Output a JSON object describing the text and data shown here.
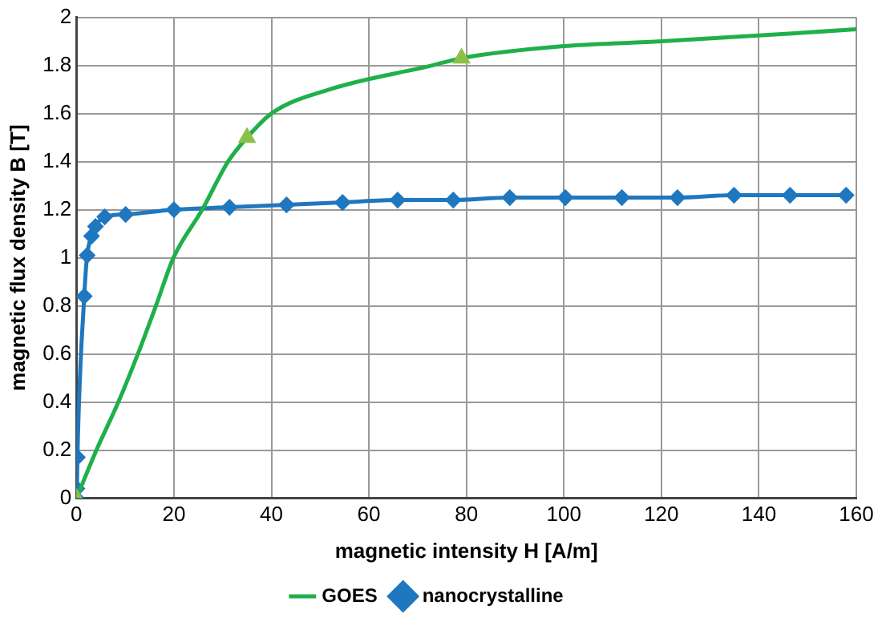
{
  "chart_data": {
    "type": "line",
    "xlabel": "magnetic intensity H [A/m]",
    "ylabel": "magnetic flux density B [T]",
    "xlim": [
      0,
      160
    ],
    "xticks": [
      0,
      20,
      40,
      60,
      80,
      100,
      120,
      140,
      160
    ],
    "ylim": [
      0,
      2
    ],
    "yticks": [
      0,
      0.2,
      0.4,
      0.6,
      0.8,
      1,
      1.2,
      1.4,
      1.6,
      1.8,
      2
    ],
    "grid": true,
    "legend": "bottom",
    "line_style": "solid",
    "series": [
      {
        "name": "GOES",
        "color": "#1fb04a",
        "marker": "none",
        "x": [
          0,
          4.1,
          8.6,
          12.6,
          16.3,
          19.9,
          25.8,
          31.1,
          35,
          40,
          51.9,
          73,
          79,
          100,
          120,
          160
        ],
        "values": [
          0,
          0.2,
          0.4,
          0.6,
          0.8,
          1,
          1.2,
          1.4,
          1.5,
          1.6,
          1.7,
          1.8,
          1.83,
          1.88,
          1.9,
          1.95
        ]
      },
      {
        "type": "scatter",
        "color": "#8cc04a",
        "marker": "triangle",
        "x": [
          0,
          35,
          79
        ],
        "values": [
          0,
          1.5,
          1.83
        ]
      },
      {
        "name": "nanocrystalline",
        "color": "#1f77c0",
        "marker": "diamond",
        "x": [
          0,
          0.1,
          0.2,
          1.6,
          2.2,
          3.1,
          3.9,
          5.8,
          10.1,
          20,
          31.4,
          43.1,
          54.6,
          65.9,
          77.3,
          88.9,
          100.3,
          111.9,
          123.3,
          134.9,
          146.4,
          157.9
        ],
        "values": [
          0,
          0.04,
          0.17,
          0.84,
          1.01,
          1.09,
          1.13,
          1.17,
          1.18,
          1.2,
          1.21,
          1.22,
          1.23,
          1.24,
          1.24,
          1.25,
          1.25,
          1.25,
          1.25,
          1.26,
          1.26,
          1.26
        ]
      }
    ]
  }
}
